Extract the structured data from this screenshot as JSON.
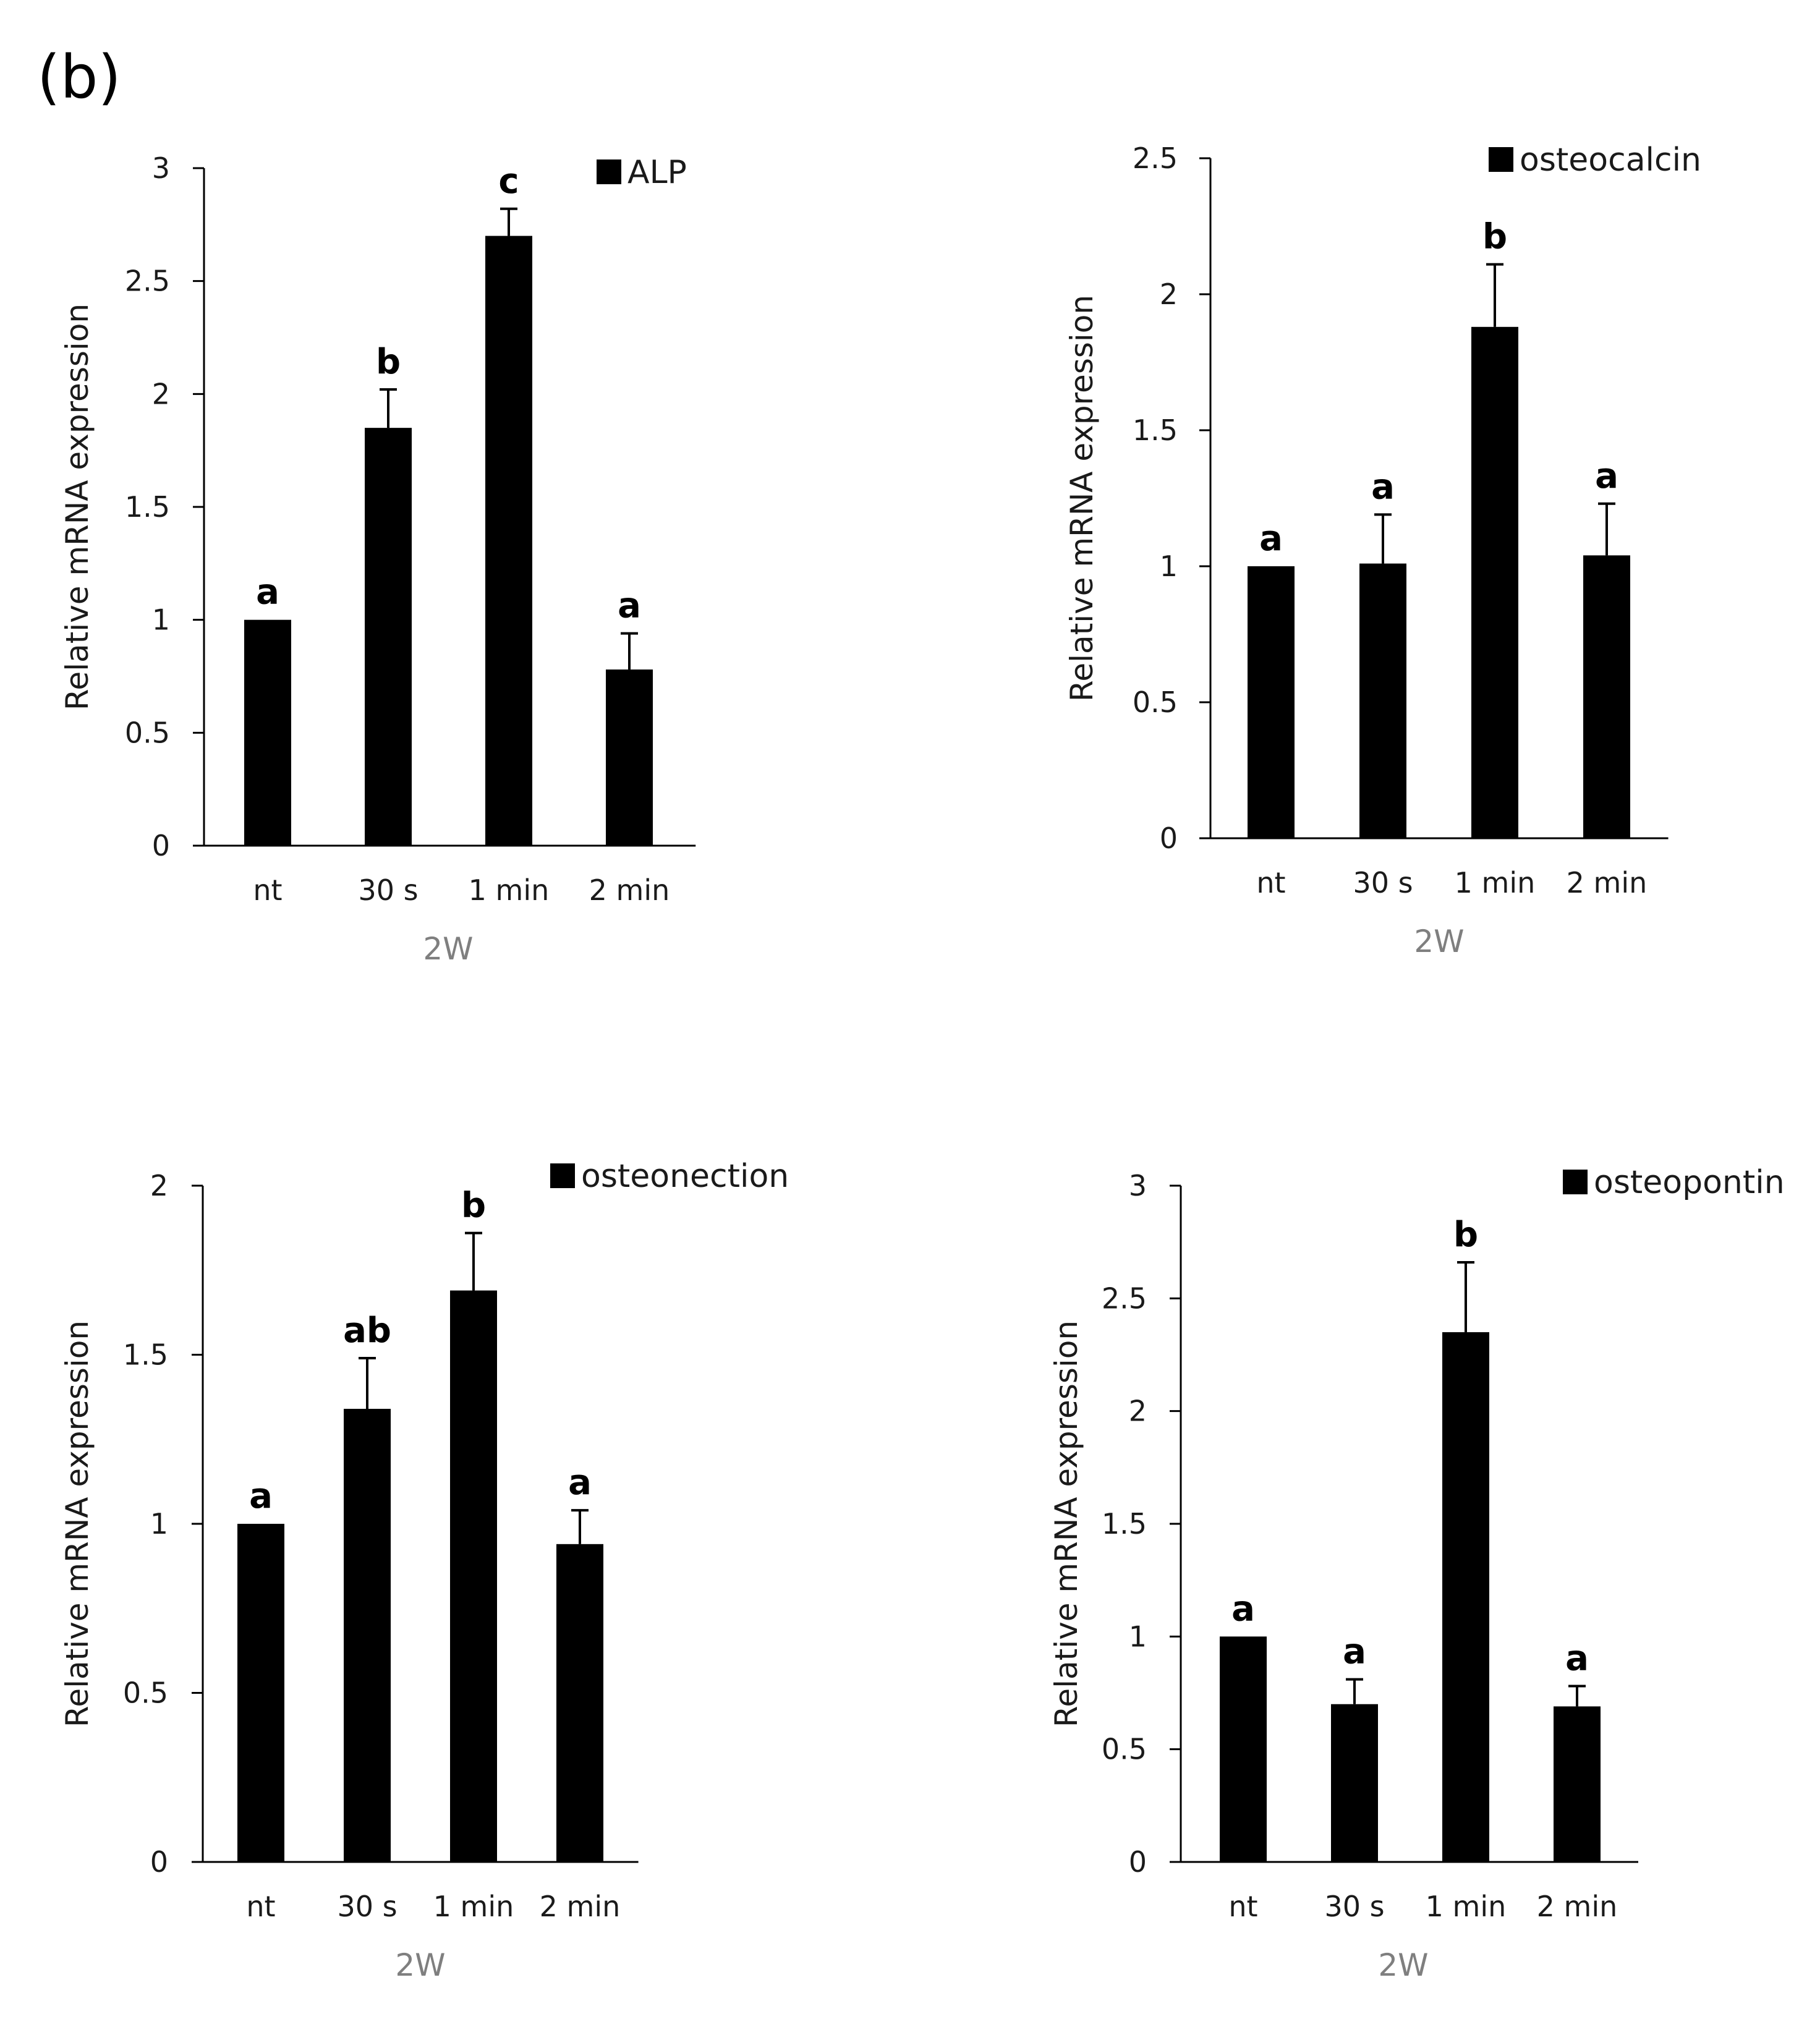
{
  "figure": {
    "panel_label": "(b)"
  },
  "colors": {
    "bar": "#000000",
    "axis": "#000000",
    "text": "#1a1a1a",
    "xlabel": "#7f7f7f"
  },
  "chart_data": [
    {
      "type": "bar",
      "legend": "ALP",
      "legend_position": "top-right",
      "categories": [
        "nt",
        "30 s",
        "1 min",
        "2 min"
      ],
      "values": [
        1.0,
        1.85,
        2.7,
        0.78
      ],
      "errors": [
        0,
        0.17,
        0.12,
        0.16
      ],
      "significance": [
        "a",
        "b",
        "c",
        "a"
      ],
      "ylabel": "Relative mRNA expression",
      "xlabel": "2W",
      "ylim": [
        0,
        3
      ],
      "yticks": [
        0,
        0.5,
        1,
        1.5,
        2,
        2.5,
        3
      ],
      "ytick_labels": [
        "0",
        "0.5",
        "1",
        "1.5",
        "2",
        "2.5",
        "3"
      ]
    },
    {
      "type": "bar",
      "legend": "osteocalcin",
      "legend_position": "top-right",
      "categories": [
        "nt",
        "30 s",
        "1 min",
        "2 min"
      ],
      "values": [
        1.0,
        1.01,
        1.88,
        1.04
      ],
      "errors": [
        0,
        0.18,
        0.23,
        0.19
      ],
      "significance": [
        "a",
        "a",
        "b",
        "a"
      ],
      "ylabel": "Relative mRNA expression",
      "xlabel": "2W",
      "ylim": [
        0,
        2.5
      ],
      "yticks": [
        0,
        0.5,
        1,
        1.5,
        2,
        2.5
      ],
      "ytick_labels": [
        "0",
        "0.5",
        "1",
        "1.5",
        "2",
        "2.5"
      ]
    },
    {
      "type": "bar",
      "legend": "osteonection",
      "legend_position": "top-right",
      "categories": [
        "nt",
        "30 s",
        "1 min",
        "2 min"
      ],
      "values": [
        1.0,
        1.34,
        1.69,
        0.94
      ],
      "errors": [
        0,
        0.15,
        0.17,
        0.1
      ],
      "significance": [
        "a",
        "ab",
        "b",
        "a"
      ],
      "ylabel": "Relative mRNA expression",
      "xlabel": "2W",
      "ylim": [
        0,
        2
      ],
      "yticks": [
        0,
        0.5,
        1,
        1.5,
        2
      ],
      "ytick_labels": [
        "0",
        "0.5",
        "1",
        "1.5",
        "2"
      ]
    },
    {
      "type": "bar",
      "legend": "osteopontin",
      "legend_position": "top-right",
      "categories": [
        "nt",
        "30 s",
        "1 min",
        "2 min"
      ],
      "values": [
        1.0,
        0.7,
        2.35,
        0.69
      ],
      "errors": [
        0,
        0.11,
        0.31,
        0.09
      ],
      "significance": [
        "a",
        "a",
        "b",
        "a"
      ],
      "ylabel": "Relative mRNA expression",
      "xlabel": "2W",
      "ylim": [
        0,
        3
      ],
      "yticks": [
        0,
        0.5,
        1,
        1.5,
        2,
        2.5,
        3
      ],
      "ytick_labels": [
        "0",
        "0.5",
        "1",
        "1.5",
        "2",
        "2.5",
        "3"
      ]
    }
  ]
}
